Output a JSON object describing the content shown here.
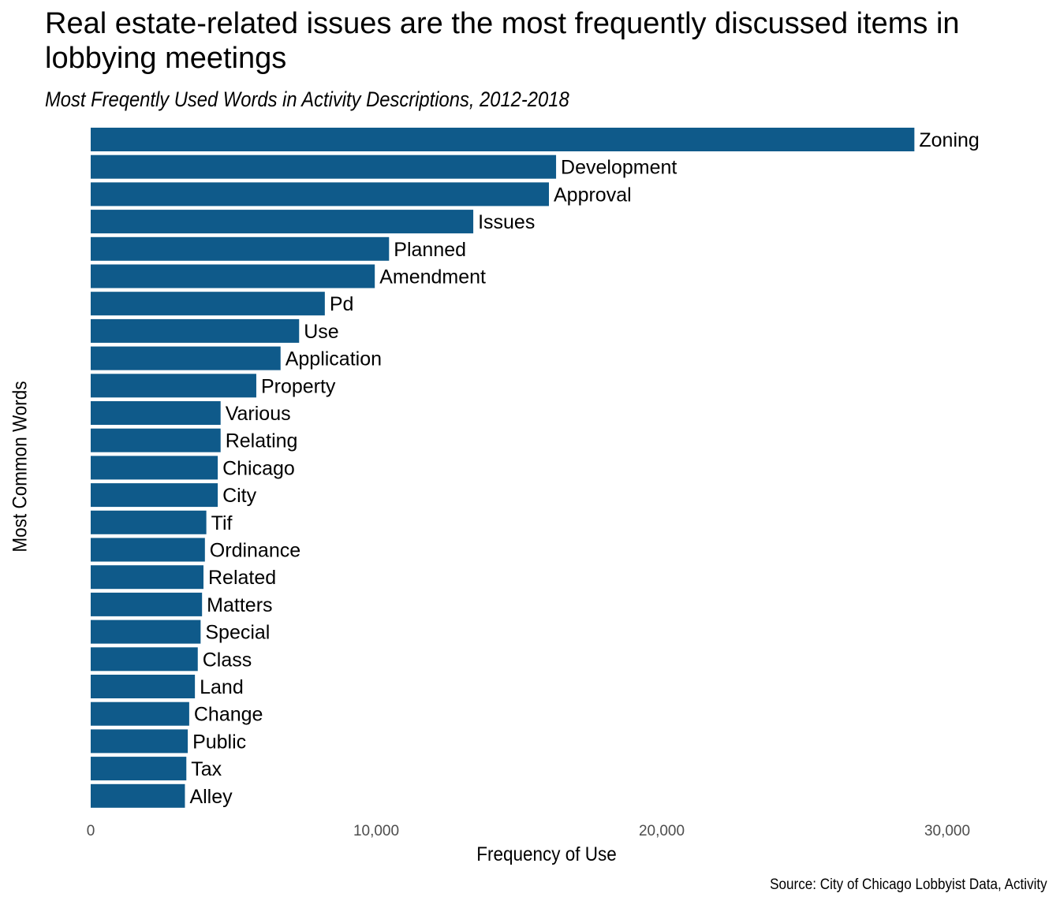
{
  "chart_data": {
    "type": "bar",
    "orientation": "horizontal",
    "title": "Real estate-related issues are the most frequently discussed items in lobbying meetings",
    "subtitle": "Most Freqently Used Words in Activity Descriptions, 2012-2018",
    "xlabel": "Frequency of Use",
    "ylabel": "Most Common Words",
    "caption": "Source: City of Chicago Lobbyist Data, Activity",
    "xlim": [
      0,
      31500
    ],
    "x_ticks": [
      0,
      10000,
      20000,
      30000
    ],
    "x_tick_labels": [
      "0",
      "10,000",
      "20,000",
      "30,000"
    ],
    "grid": false,
    "bar_color": "#0f5a8a",
    "categories": [
      "Zoning",
      "Development",
      "Approval",
      "Issues",
      "Planned",
      "Amendment",
      "Pd",
      "Use",
      "Application",
      "Property",
      "Various",
      "Relating",
      "Chicago",
      "City",
      "Tif",
      "Ordinance",
      "Related",
      "Matters",
      "Special",
      "Class",
      "Land",
      "Change",
      "Public",
      "Tax",
      "Alley"
    ],
    "values": [
      28850,
      16300,
      16050,
      13400,
      10450,
      9950,
      8200,
      7300,
      6650,
      5800,
      4550,
      4550,
      4450,
      4450,
      4050,
      4000,
      3950,
      3900,
      3850,
      3750,
      3650,
      3450,
      3400,
      3350,
      3300
    ]
  }
}
